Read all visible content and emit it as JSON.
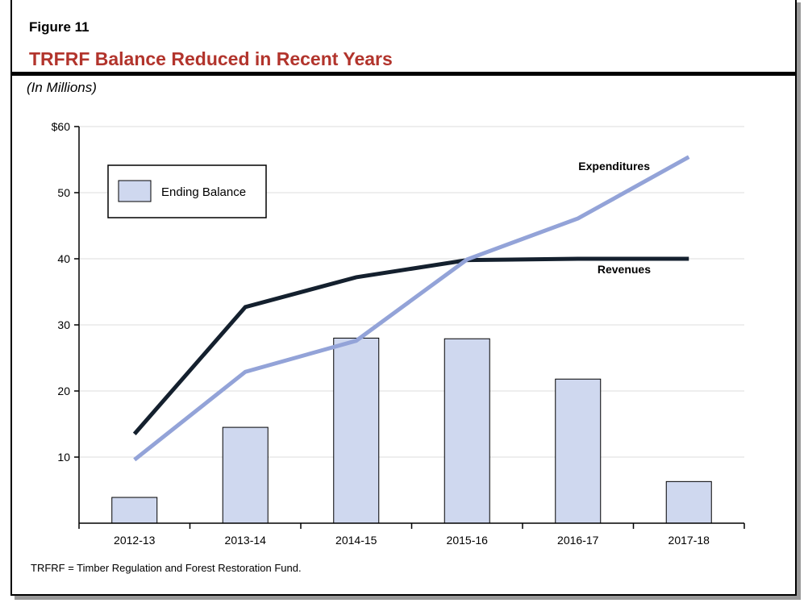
{
  "figure_label": "Figure 11",
  "title": "TRFRF Balance Reduced in Recent Years",
  "units": "(In Millions)",
  "footnote": "TRFRF = Timber Regulation and Forest Restoration Fund.",
  "chart_data": {
    "type": "bar+line",
    "categories": [
      "2012-13",
      "2013-14",
      "2014-15",
      "2015-16",
      "2016-17",
      "2017-18"
    ],
    "ylim": [
      0,
      60
    ],
    "yticks": [
      10,
      20,
      30,
      40,
      50,
      60
    ],
    "ytick_labels": [
      "10",
      "20",
      "30",
      "40",
      "50",
      "$60"
    ],
    "grid": true,
    "legend_position": "top-left",
    "series": [
      {
        "name": "Ending Balance",
        "kind": "bar",
        "color": "#cfd8ef",
        "values": [
          3.9,
          14.5,
          28.0,
          27.9,
          21.8,
          6.3
        ]
      },
      {
        "name": "Revenues",
        "kind": "line",
        "color": "#14202e",
        "values": [
          13.5,
          32.7,
          37.2,
          39.8,
          40.0,
          40.0
        ]
      },
      {
        "name": "Expenditures",
        "kind": "line",
        "color": "#93a3d8",
        "values": [
          9.6,
          22.9,
          27.6,
          39.9,
          46.1,
          55.4
        ]
      }
    ]
  }
}
